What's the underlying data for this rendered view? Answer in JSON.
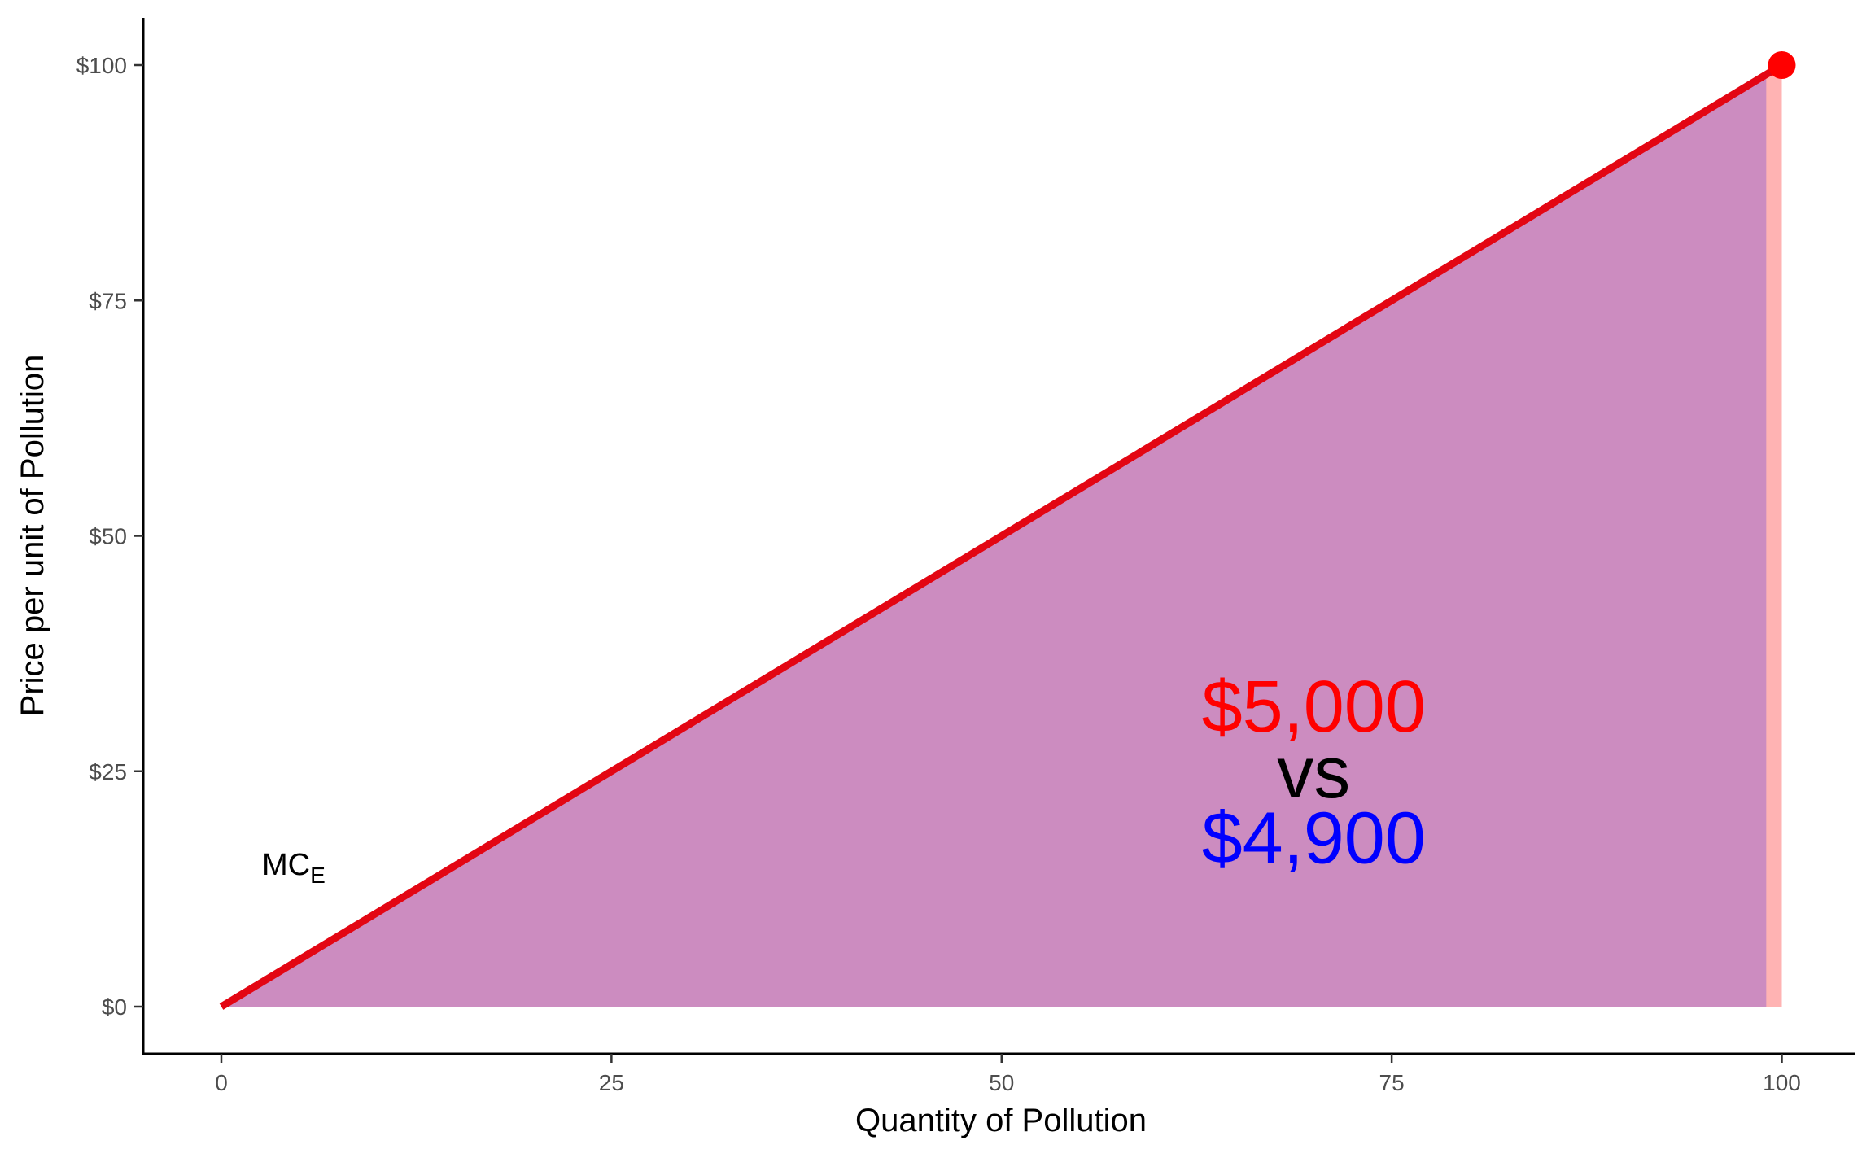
{
  "chart_data": {
    "type": "area",
    "xlabel": "Quantity of Pollution",
    "ylabel": "Price per unit of Pollution",
    "xlim": [
      -5,
      105
    ],
    "ylim": [
      -5,
      105
    ],
    "x_ticks": [
      0,
      25,
      50,
      75,
      100
    ],
    "x_tick_labels": [
      "0",
      "25",
      "50",
      "75",
      "100"
    ],
    "y_ticks": [
      0,
      25,
      50,
      75,
      100
    ],
    "y_tick_labels": [
      "$0",
      "$25",
      "$50",
      "$75",
      "$100"
    ],
    "grid": false,
    "series": [
      {
        "name": "MC",
        "name_subscript": "E",
        "type": "line",
        "color": "#e30613",
        "x": [
          0,
          100
        ],
        "y": [
          0,
          100
        ]
      }
    ],
    "shaded_areas": [
      {
        "color": "#ffb3b3",
        "x": [
          0,
          100
        ],
        "y_top": [
          0,
          100
        ]
      },
      {
        "color": "#cc8cc0",
        "x": [
          0,
          99
        ],
        "y_top": [
          0,
          99
        ]
      }
    ],
    "points": [
      {
        "x": 100,
        "y": 100,
        "color": "#ff0000"
      }
    ],
    "annotations": [
      {
        "text": "$5,000",
        "x": 70,
        "y": 32,
        "color": "#ff0000"
      },
      {
        "text": "vs",
        "x": 70,
        "y": 25,
        "color": "#000000"
      },
      {
        "text": "$4,900",
        "x": 70,
        "y": 18,
        "color": "#0000ff"
      }
    ]
  }
}
